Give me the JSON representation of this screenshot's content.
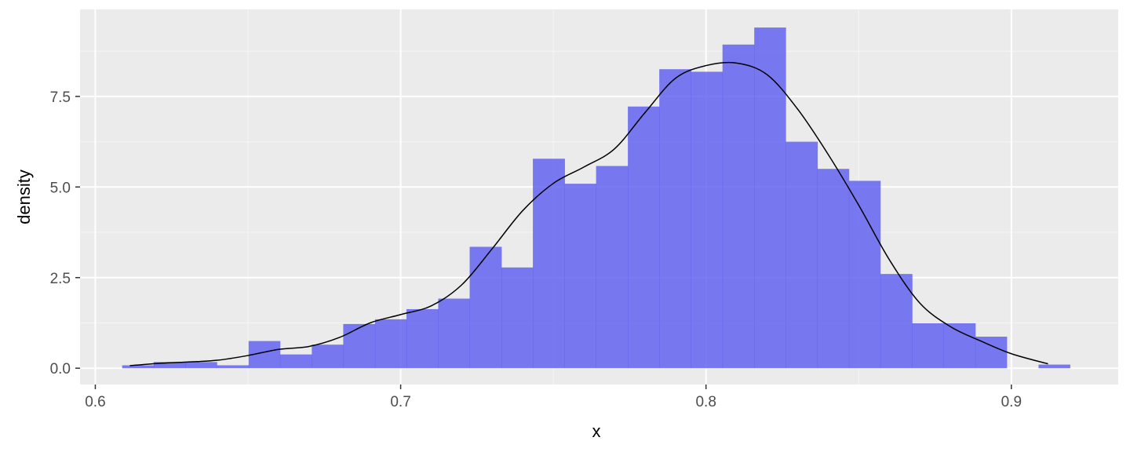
{
  "chart_data": {
    "type": "histogram",
    "title": "",
    "xlabel": "x",
    "ylabel": "density",
    "xlim": [
      0.595,
      0.935
    ],
    "ylim": [
      -0.45,
      9.9
    ],
    "x_ticks": [
      0.6,
      0.7,
      0.8,
      0.9
    ],
    "x_tick_labels": [
      "0.6",
      "0.7",
      "0.8",
      "0.9"
    ],
    "y_ticks": [
      0,
      2.5,
      5,
      7.5
    ],
    "y_tick_labels": [
      "0.0",
      "2.5",
      "5.0",
      "7.5"
    ],
    "grid": true,
    "bin_width": 0.010345,
    "bins": [
      {
        "x0": 0.6088,
        "x1": 0.6191,
        "density": 0.08
      },
      {
        "x0": 0.6191,
        "x1": 0.6295,
        "density": 0.17
      },
      {
        "x0": 0.6295,
        "x1": 0.6398,
        "density": 0.17
      },
      {
        "x0": 0.6398,
        "x1": 0.6502,
        "density": 0.08
      },
      {
        "x0": 0.6502,
        "x1": 0.6605,
        "density": 0.75
      },
      {
        "x0": 0.6605,
        "x1": 0.6709,
        "density": 0.38
      },
      {
        "x0": 0.6709,
        "x1": 0.6812,
        "density": 0.65
      },
      {
        "x0": 0.6812,
        "x1": 0.6916,
        "density": 1.22
      },
      {
        "x0": 0.6916,
        "x1": 0.7019,
        "density": 1.35
      },
      {
        "x0": 0.7019,
        "x1": 0.7123,
        "density": 1.63
      },
      {
        "x0": 0.7123,
        "x1": 0.7226,
        "density": 1.92
      },
      {
        "x0": 0.7226,
        "x1": 0.733,
        "density": 3.35
      },
      {
        "x0": 0.733,
        "x1": 0.7433,
        "density": 2.78
      },
      {
        "x0": 0.7433,
        "x1": 0.7537,
        "density": 5.78
      },
      {
        "x0": 0.7537,
        "x1": 0.764,
        "density": 5.09
      },
      {
        "x0": 0.764,
        "x1": 0.7744,
        "density": 5.58
      },
      {
        "x0": 0.7744,
        "x1": 0.7847,
        "density": 7.22
      },
      {
        "x0": 0.7847,
        "x1": 0.7951,
        "density": 8.25
      },
      {
        "x0": 0.7951,
        "x1": 0.8054,
        "density": 8.18
      },
      {
        "x0": 0.8054,
        "x1": 0.8158,
        "density": 8.93
      },
      {
        "x0": 0.8158,
        "x1": 0.8261,
        "density": 9.4
      },
      {
        "x0": 0.8261,
        "x1": 0.8365,
        "density": 6.25
      },
      {
        "x0": 0.8365,
        "x1": 0.8468,
        "density": 5.5
      },
      {
        "x0": 0.8468,
        "x1": 0.8571,
        "density": 5.17
      },
      {
        "x0": 0.8571,
        "x1": 0.8675,
        "density": 2.6
      },
      {
        "x0": 0.8675,
        "x1": 0.8778,
        "density": 1.24
      },
      {
        "x0": 0.8778,
        "x1": 0.8882,
        "density": 1.24
      },
      {
        "x0": 0.8882,
        "x1": 0.8985,
        "density": 0.87
      },
      {
        "x0": 0.8985,
        "x1": 0.9089,
        "density": 0.0
      },
      {
        "x0": 0.9089,
        "x1": 0.9192,
        "density": 0.1
      }
    ],
    "density_curve": [
      [
        0.6113,
        0.07
      ],
      [
        0.62,
        0.13
      ],
      [
        0.63,
        0.17
      ],
      [
        0.64,
        0.22
      ],
      [
        0.65,
        0.35
      ],
      [
        0.66,
        0.52
      ],
      [
        0.67,
        0.6
      ],
      [
        0.68,
        0.85
      ],
      [
        0.69,
        1.25
      ],
      [
        0.7,
        1.48
      ],
      [
        0.71,
        1.72
      ],
      [
        0.72,
        2.3
      ],
      [
        0.73,
        3.3
      ],
      [
        0.74,
        4.35
      ],
      [
        0.75,
        5.1
      ],
      [
        0.76,
        5.55
      ],
      [
        0.77,
        6.05
      ],
      [
        0.78,
        7.05
      ],
      [
        0.79,
        8.0
      ],
      [
        0.8,
        8.35
      ],
      [
        0.81,
        8.42
      ],
      [
        0.82,
        8.1
      ],
      [
        0.83,
        7.15
      ],
      [
        0.84,
        5.9
      ],
      [
        0.85,
        4.5
      ],
      [
        0.86,
        3.0
      ],
      [
        0.87,
        1.8
      ],
      [
        0.88,
        1.15
      ],
      [
        0.89,
        0.75
      ],
      [
        0.9,
        0.4
      ],
      [
        0.912,
        0.12
      ]
    ],
    "colors": {
      "bar_fill": "#5a5af0",
      "bar_opacity": 0.8,
      "curve": "#000000",
      "panel_background": "#ebebeb",
      "grid_major": "#ffffff",
      "grid_minor": "#f5f5f5"
    }
  }
}
